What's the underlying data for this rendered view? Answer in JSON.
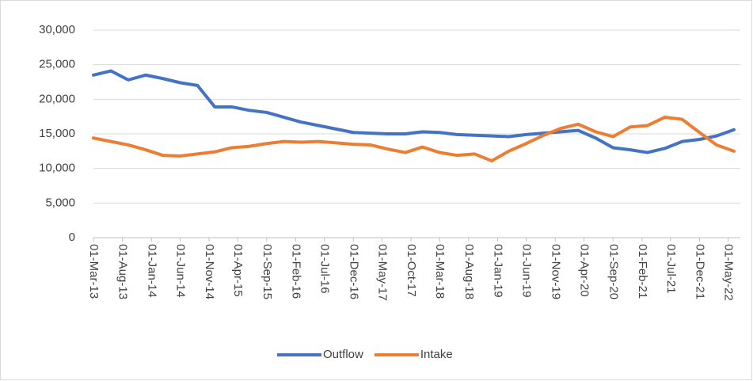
{
  "chart_data": {
    "type": "line",
    "x": [
      "2013-03-01",
      "2013-06-01",
      "2013-09-01",
      "2013-12-01",
      "2014-03-01",
      "2014-06-01",
      "2014-09-01",
      "2014-12-01",
      "2015-03-01",
      "2015-06-01",
      "2015-09-01",
      "2015-12-01",
      "2016-03-01",
      "2016-06-01",
      "2016-09-01",
      "2016-12-01",
      "2017-03-01",
      "2017-06-01",
      "2017-09-01",
      "2017-12-01",
      "2018-03-01",
      "2018-06-01",
      "2018-09-01",
      "2018-12-01",
      "2019-03-01",
      "2019-06-01",
      "2019-09-01",
      "2019-12-01",
      "2020-03-01",
      "2020-06-01",
      "2020-09-01",
      "2020-12-01",
      "2021-03-01",
      "2021-06-01",
      "2021-09-01",
      "2021-12-01",
      "2022-03-01",
      "2022-06-01"
    ],
    "series": [
      {
        "name": "Outflow",
        "color": "#4472c4",
        "values": [
          23500,
          24100,
          22800,
          23500,
          23000,
          22400,
          22000,
          18900,
          18900,
          18400,
          18100,
          17400,
          16700,
          16200,
          15700,
          15200,
          15100,
          15000,
          15000,
          15300,
          15200,
          14900,
          14800,
          14700,
          14600,
          14900,
          15100,
          15300,
          15500,
          14400,
          13000,
          12700,
          12300,
          12900,
          13900,
          14200,
          14700,
          15600
        ]
      },
      {
        "name": "Intake",
        "color": "#ed7d31",
        "values": [
          14400,
          13900,
          13400,
          12700,
          11900,
          11800,
          12100,
          12400,
          13000,
          13200,
          13600,
          13900,
          13800,
          13900,
          13700,
          13500,
          13400,
          12800,
          12300,
          13100,
          12300,
          11900,
          12100,
          11100,
          12500,
          13600,
          14800,
          15800,
          16400,
          15300,
          14600,
          16000,
          16200,
          17400,
          17100,
          15200,
          13400,
          12500
        ]
      }
    ],
    "xlim": [
      "2013-03-01",
      "2022-06-01"
    ],
    "xticks": [
      {
        "value": "2013-03-01",
        "label": "01-Mar-13"
      },
      {
        "value": "2013-08-01",
        "label": "01-Aug-13"
      },
      {
        "value": "2014-01-01",
        "label": "01-Jan-14"
      },
      {
        "value": "2014-06-01",
        "label": "01-Jun-14"
      },
      {
        "value": "2014-11-01",
        "label": "01-Nov-14"
      },
      {
        "value": "2015-04-01",
        "label": "01-Apr-15"
      },
      {
        "value": "2015-09-01",
        "label": "01-Sep-15"
      },
      {
        "value": "2016-02-01",
        "label": "01-Feb-16"
      },
      {
        "value": "2016-07-01",
        "label": "01-Jul-16"
      },
      {
        "value": "2016-12-01",
        "label": "01-Dec-16"
      },
      {
        "value": "2017-05-01",
        "label": "01-May-17"
      },
      {
        "value": "2017-10-01",
        "label": "01-Oct-17"
      },
      {
        "value": "2018-03-01",
        "label": "01-Mar-18"
      },
      {
        "value": "2018-08-01",
        "label": "01-Aug-18"
      },
      {
        "value": "2019-01-01",
        "label": "01-Jan-19"
      },
      {
        "value": "2019-06-01",
        "label": "01-Jun-19"
      },
      {
        "value": "2019-11-01",
        "label": "01-Nov-19"
      },
      {
        "value": "2020-04-01",
        "label": "01-Apr-20"
      },
      {
        "value": "2020-09-01",
        "label": "01-Sep-20"
      },
      {
        "value": "2021-02-01",
        "label": "01-Feb-21"
      },
      {
        "value": "2021-07-01",
        "label": "01-Jul-21"
      },
      {
        "value": "2021-12-01",
        "label": "01-Dec-21"
      },
      {
        "value": "2022-05-01",
        "label": "01-May-22"
      }
    ],
    "ylim": [
      0,
      30000
    ],
    "yticks": [
      0,
      {
        "value": 5000,
        "label": "5,000"
      },
      {
        "value": 10000,
        "label": "10,000"
      },
      {
        "value": 15000,
        "label": "15,000"
      },
      {
        "value": 20000,
        "label": "20,000"
      },
      {
        "value": 25000,
        "label": "25,000"
      },
      {
        "value": 30000,
        "label": "30,000"
      }
    ],
    "grid": true,
    "legend": "bottom"
  }
}
